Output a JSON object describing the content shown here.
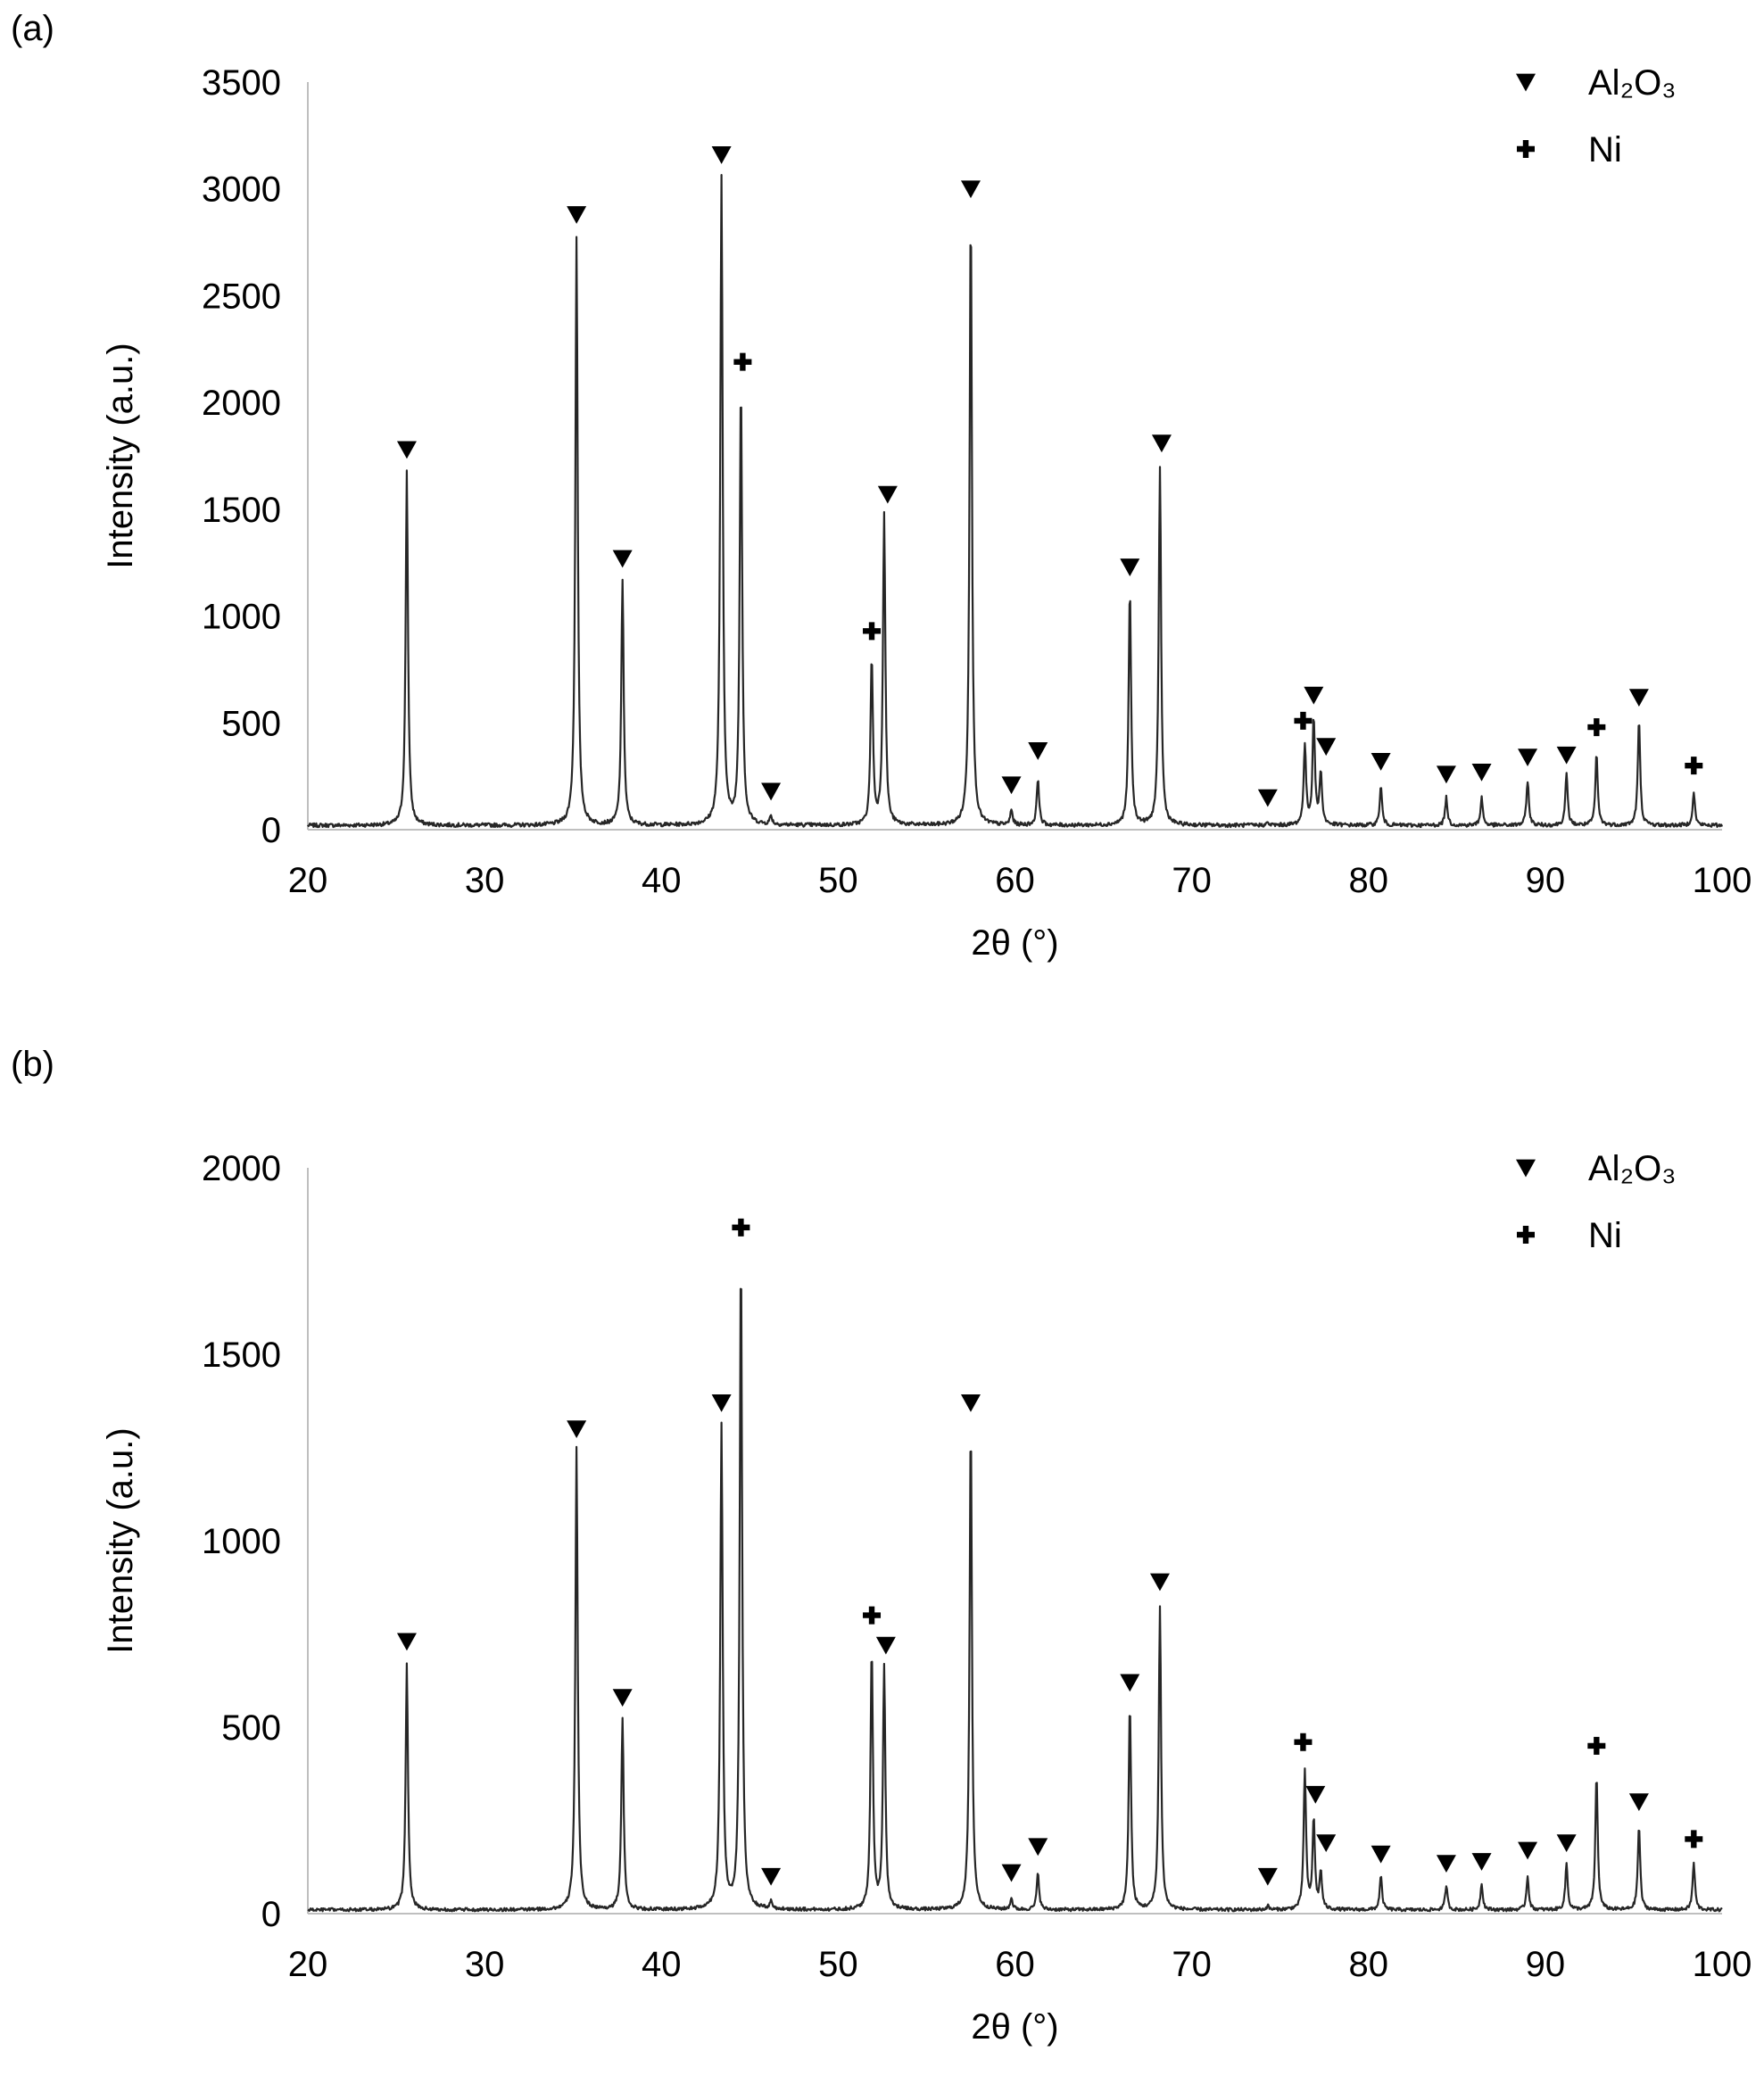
{
  "chart_data": [
    {
      "type": "line",
      "panel_label": "(a)",
      "xlabel": "2θ (°)",
      "ylabel": "Intensity (a.u.)",
      "xlim": [
        20,
        100
      ],
      "ylim": [
        0,
        3500
      ],
      "xticks": [
        20,
        30,
        40,
        50,
        60,
        70,
        80,
        90,
        100
      ],
      "yticks": [
        0,
        500,
        1000,
        1500,
        2000,
        2500,
        3000,
        3500
      ],
      "grid": false,
      "legend": {
        "position": "top-right",
        "entries": [
          {
            "marker": "triangle-down",
            "label": "Al₂O₃"
          },
          {
            "marker": "plus",
            "label": "Ni"
          }
        ]
      },
      "baseline": 20,
      "peaks": [
        {
          "x": 25.6,
          "y": 1680,
          "phase": "Al2O3"
        },
        {
          "x": 35.2,
          "y": 2780,
          "phase": "Al2O3"
        },
        {
          "x": 37.8,
          "y": 1170,
          "phase": "Al2O3"
        },
        {
          "x": 43.4,
          "y": 3050,
          "phase": "Al2O3"
        },
        {
          "x": 44.5,
          "y": 2080,
          "phase": "Ni"
        },
        {
          "x": 46.2,
          "y": 60,
          "phase": "Al2O3"
        },
        {
          "x": 51.9,
          "y": 800,
          "phase": "Ni"
        },
        {
          "x": 52.6,
          "y": 1470,
          "phase": "Al2O3"
        },
        {
          "x": 57.5,
          "y": 2900,
          "phase": "Al2O3"
        },
        {
          "x": 59.8,
          "y": 90,
          "phase": "Al2O3"
        },
        {
          "x": 61.3,
          "y": 240,
          "phase": "Al2O3"
        },
        {
          "x": 66.5,
          "y": 1120,
          "phase": "Al2O3"
        },
        {
          "x": 68.2,
          "y": 1700,
          "phase": "Al2O3"
        },
        {
          "x": 74.3,
          "y": 30,
          "phase": "Al2O3"
        },
        {
          "x": 76.4,
          "y": 390,
          "phase": "Ni"
        },
        {
          "x": 76.9,
          "y": 520,
          "phase": "Al2O3"
        },
        {
          "x": 77.3,
          "y": 270,
          "phase": "Al2O3"
        },
        {
          "x": 80.7,
          "y": 200,
          "phase": "Al2O3"
        },
        {
          "x": 84.4,
          "y": 150,
          "phase": "Al2O3"
        },
        {
          "x": 86.4,
          "y": 150,
          "phase": "Al2O3"
        },
        {
          "x": 89.0,
          "y": 230,
          "phase": "Al2O3"
        },
        {
          "x": 91.2,
          "y": 260,
          "phase": "Al2O3"
        },
        {
          "x": 92.9,
          "y": 350,
          "phase": "Ni"
        },
        {
          "x": 95.3,
          "y": 510,
          "phase": "Al2O3"
        },
        {
          "x": 98.4,
          "y": 170,
          "phase": "Ni"
        }
      ],
      "markers": [
        {
          "x": 25.6,
          "y": 1780,
          "phase": "Al2O3"
        },
        {
          "x": 35.2,
          "y": 2880,
          "phase": "Al2O3"
        },
        {
          "x": 37.8,
          "y": 1270,
          "phase": "Al2O3"
        },
        {
          "x": 43.4,
          "y": 3160,
          "phase": "Al2O3"
        },
        {
          "x": 44.6,
          "y": 2190,
          "phase": "Ni"
        },
        {
          "x": 46.2,
          "y": 180,
          "phase": "Al2O3"
        },
        {
          "x": 51.9,
          "y": 930,
          "phase": "Ni"
        },
        {
          "x": 52.8,
          "y": 1570,
          "phase": "Al2O3"
        },
        {
          "x": 57.5,
          "y": 3000,
          "phase": "Al2O3"
        },
        {
          "x": 59.8,
          "y": 210,
          "phase": "Al2O3"
        },
        {
          "x": 61.3,
          "y": 370,
          "phase": "Al2O3"
        },
        {
          "x": 66.5,
          "y": 1230,
          "phase": "Al2O3"
        },
        {
          "x": 68.3,
          "y": 1810,
          "phase": "Al2O3"
        },
        {
          "x": 74.3,
          "y": 150,
          "phase": "Al2O3"
        },
        {
          "x": 76.3,
          "y": 510,
          "phase": "Ni"
        },
        {
          "x": 76.9,
          "y": 630,
          "phase": "Al2O3"
        },
        {
          "x": 77.6,
          "y": 390,
          "phase": "Al2O3"
        },
        {
          "x": 80.7,
          "y": 320,
          "phase": "Al2O3"
        },
        {
          "x": 84.4,
          "y": 260,
          "phase": "Al2O3"
        },
        {
          "x": 86.4,
          "y": 270,
          "phase": "Al2O3"
        },
        {
          "x": 89.0,
          "y": 340,
          "phase": "Al2O3"
        },
        {
          "x": 91.2,
          "y": 350,
          "phase": "Al2O3"
        },
        {
          "x": 92.9,
          "y": 480,
          "phase": "Ni"
        },
        {
          "x": 95.3,
          "y": 620,
          "phase": "Al2O3"
        },
        {
          "x": 98.4,
          "y": 300,
          "phase": "Ni"
        }
      ]
    },
    {
      "type": "line",
      "panel_label": "(b)",
      "xlabel": "2θ (°)",
      "ylabel": "Intensity (a.u.)",
      "xlim": [
        20,
        100
      ],
      "ylim": [
        0,
        2000
      ],
      "xticks": [
        20,
        30,
        40,
        50,
        60,
        70,
        80,
        90,
        100
      ],
      "yticks": [
        0,
        500,
        1000,
        1500,
        2000
      ],
      "grid": false,
      "legend": {
        "position": "top-right",
        "entries": [
          {
            "marker": "triangle-down",
            "label": "Al₂O₃"
          },
          {
            "marker": "plus",
            "label": "Ni"
          }
        ]
      },
      "baseline": 10,
      "peaks": [
        {
          "x": 25.6,
          "y": 670,
          "phase": "Al2O3"
        },
        {
          "x": 35.2,
          "y": 1250,
          "phase": "Al2O3"
        },
        {
          "x": 37.8,
          "y": 520,
          "phase": "Al2O3"
        },
        {
          "x": 43.4,
          "y": 1310,
          "phase": "Al2O3"
        },
        {
          "x": 44.5,
          "y": 1770,
          "phase": "Ni"
        },
        {
          "x": 46.2,
          "y": 30,
          "phase": "Al2O3"
        },
        {
          "x": 51.9,
          "y": 710,
          "phase": "Ni"
        },
        {
          "x": 52.6,
          "y": 660,
          "phase": "Al2O3"
        },
        {
          "x": 57.5,
          "y": 1310,
          "phase": "Al2O3"
        },
        {
          "x": 59.8,
          "y": 40,
          "phase": "Al2O3"
        },
        {
          "x": 61.3,
          "y": 110,
          "phase": "Al2O3"
        },
        {
          "x": 66.5,
          "y": 560,
          "phase": "Al2O3"
        },
        {
          "x": 68.2,
          "y": 820,
          "phase": "Al2O3"
        },
        {
          "x": 74.3,
          "y": 20,
          "phase": "Al2O3"
        },
        {
          "x": 76.4,
          "y": 380,
          "phase": "Ni"
        },
        {
          "x": 76.9,
          "y": 250,
          "phase": "Al2O3"
        },
        {
          "x": 77.3,
          "y": 110,
          "phase": "Al2O3"
        },
        {
          "x": 80.7,
          "y": 100,
          "phase": "Al2O3"
        },
        {
          "x": 84.4,
          "y": 75,
          "phase": "Al2O3"
        },
        {
          "x": 86.4,
          "y": 80,
          "phase": "Al2O3"
        },
        {
          "x": 89.0,
          "y": 100,
          "phase": "Al2O3"
        },
        {
          "x": 91.2,
          "y": 135,
          "phase": "Al2O3"
        },
        {
          "x": 92.9,
          "y": 370,
          "phase": "Ni"
        },
        {
          "x": 95.3,
          "y": 235,
          "phase": "Al2O3"
        },
        {
          "x": 98.4,
          "y": 135,
          "phase": "Ni"
        }
      ],
      "markers": [
        {
          "x": 25.6,
          "y": 730,
          "phase": "Al2O3"
        },
        {
          "x": 35.2,
          "y": 1300,
          "phase": "Al2O3"
        },
        {
          "x": 37.8,
          "y": 580,
          "phase": "Al2O3"
        },
        {
          "x": 43.4,
          "y": 1370,
          "phase": "Al2O3"
        },
        {
          "x": 44.5,
          "y": 1840,
          "phase": "Ni"
        },
        {
          "x": 46.2,
          "y": 100,
          "phase": "Al2O3"
        },
        {
          "x": 51.9,
          "y": 800,
          "phase": "Ni"
        },
        {
          "x": 52.7,
          "y": 720,
          "phase": "Al2O3"
        },
        {
          "x": 57.5,
          "y": 1370,
          "phase": "Al2O3"
        },
        {
          "x": 59.8,
          "y": 110,
          "phase": "Al2O3"
        },
        {
          "x": 61.3,
          "y": 180,
          "phase": "Al2O3"
        },
        {
          "x": 66.5,
          "y": 620,
          "phase": "Al2O3"
        },
        {
          "x": 68.2,
          "y": 890,
          "phase": "Al2O3"
        },
        {
          "x": 74.3,
          "y": 100,
          "phase": "Al2O3"
        },
        {
          "x": 76.3,
          "y": 460,
          "phase": "Ni"
        },
        {
          "x": 77.0,
          "y": 320,
          "phase": "Al2O3"
        },
        {
          "x": 77.6,
          "y": 190,
          "phase": "Al2O3"
        },
        {
          "x": 80.7,
          "y": 160,
          "phase": "Al2O3"
        },
        {
          "x": 84.4,
          "y": 135,
          "phase": "Al2O3"
        },
        {
          "x": 86.4,
          "y": 140,
          "phase": "Al2O3"
        },
        {
          "x": 89.0,
          "y": 170,
          "phase": "Al2O3"
        },
        {
          "x": 91.2,
          "y": 190,
          "phase": "Al2O3"
        },
        {
          "x": 92.9,
          "y": 450,
          "phase": "Ni"
        },
        {
          "x": 95.3,
          "y": 300,
          "phase": "Al2O3"
        },
        {
          "x": 98.4,
          "y": 200,
          "phase": "Ni"
        }
      ]
    }
  ]
}
